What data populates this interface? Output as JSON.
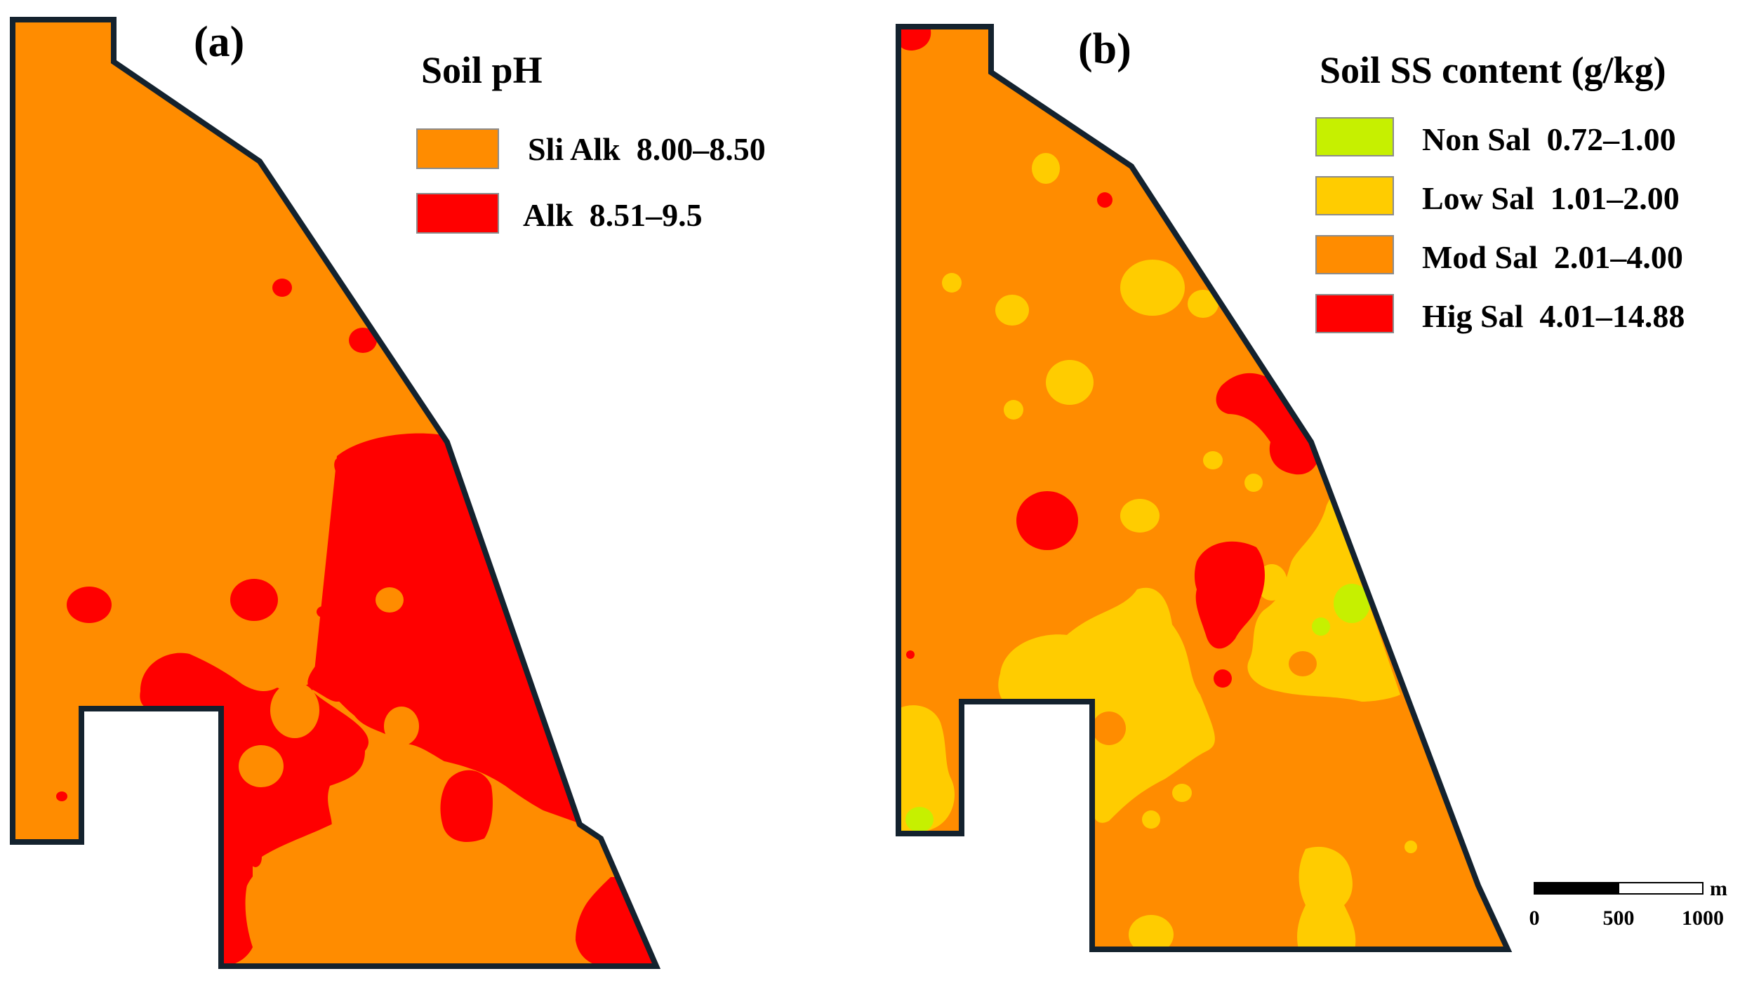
{
  "panel_a": {
    "label": "(a)",
    "legend": {
      "title": "Soil pH",
      "items": [
        {
          "label": "Sli Alk  8.00–8.50",
          "color": "#ff8c00"
        },
        {
          "label": "Alk  8.51–9.5",
          "color": "#ff0000"
        }
      ]
    }
  },
  "panel_b": {
    "label": "(b)",
    "legend": {
      "title": "Soil SS content (g/kg)",
      "items": [
        {
          "label": "Non Sal  0.72–1.00",
          "color": "#c6f000"
        },
        {
          "label": "Low Sal  1.01–2.00",
          "color": "#ffcc00"
        },
        {
          "label": "Mod Sal  2.01–4.00",
          "color": "#ff8c00"
        },
        {
          "label": "Hig Sal  4.01–14.88",
          "color": "#ff0000"
        }
      ]
    }
  },
  "scale_bar": {
    "unit": "m",
    "ticks": [
      "0",
      "500",
      "1000"
    ]
  },
  "colors": {
    "outline": "#14222e",
    "legend_border": "#8c8c8c"
  }
}
